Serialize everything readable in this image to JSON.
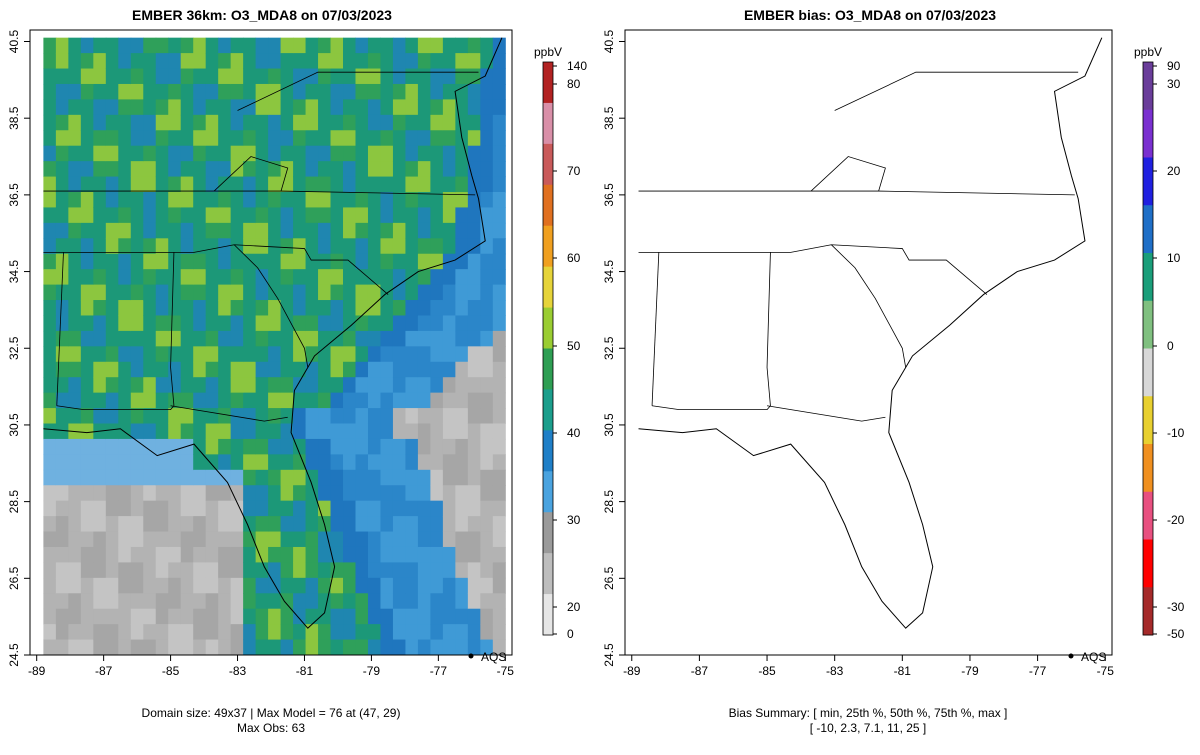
{
  "chart_data": [
    {
      "type": "heatmap",
      "title": "EMBER 36km: O3_MDA8 on 07/03/2023",
      "x_ticks": [
        "-89",
        "-87",
        "-85",
        "-83",
        "-81",
        "-79",
        "-77",
        "-75"
      ],
      "y_ticks": [
        "24.5",
        "26.5",
        "28.5",
        "30.5",
        "32.5",
        "34.5",
        "36.5",
        "38.5",
        "40.5"
      ],
      "xlim": [
        -89.2,
        -74.8
      ],
      "ylim": [
        24.5,
        40.8
      ],
      "colorbar": {
        "unit": "ppbV",
        "ticks": [
          "140",
          "80",
          "70",
          "60",
          "50",
          "40",
          "30",
          "20",
          "0"
        ],
        "colors": [
          "#e6e6e6",
          "#bdbdbd",
          "#9a9a9a",
          "#4aa3df",
          "#1f7fc7",
          "#1b9e8c",
          "#2e9e53",
          "#9acd32",
          "#e6d43a",
          "#f0a020",
          "#e07020",
          "#c95a5a",
          "#d98fa8",
          "#b22222"
        ]
      },
      "legend": "AQS",
      "footer": [
        "Domain size: 49x37 | Max Model = 76 at (47, 29)",
        "Max Obs: 63"
      ]
    },
    {
      "type": "scatter",
      "title": "EMBER bias: O3_MDA8 on 07/03/2023",
      "x_ticks": [
        "-89",
        "-87",
        "-85",
        "-83",
        "-81",
        "-79",
        "-77",
        "-75"
      ],
      "y_ticks": [
        "24.5",
        "26.5",
        "28.5",
        "30.5",
        "32.5",
        "34.5",
        "36.5",
        "38.5",
        "40.5"
      ],
      "xlim": [
        -89.2,
        -74.8
      ],
      "ylim": [
        24.5,
        40.8
      ],
      "colorbar": {
        "unit": "ppbV",
        "ticks": [
          "90",
          "30",
          "20",
          "10",
          "0",
          "-10",
          "-20",
          "-30",
          "-50"
        ],
        "colors": [
          "#a52a2a",
          "#ff0000",
          "#e85080",
          "#f09020",
          "#e8d030",
          "#d8d8d8",
          "#80c080",
          "#1a9e7a",
          "#1f6fc7",
          "#2020e0",
          "#7a30d0",
          "#6a3d9a"
        ]
      },
      "legend": "AQS",
      "footer": [
        "Bias Summary: [ min, 25th %, 50th %, 75th %, max ]",
        "[ -10,  2.3,  7.1,  11,  25 ]"
      ]
    }
  ]
}
